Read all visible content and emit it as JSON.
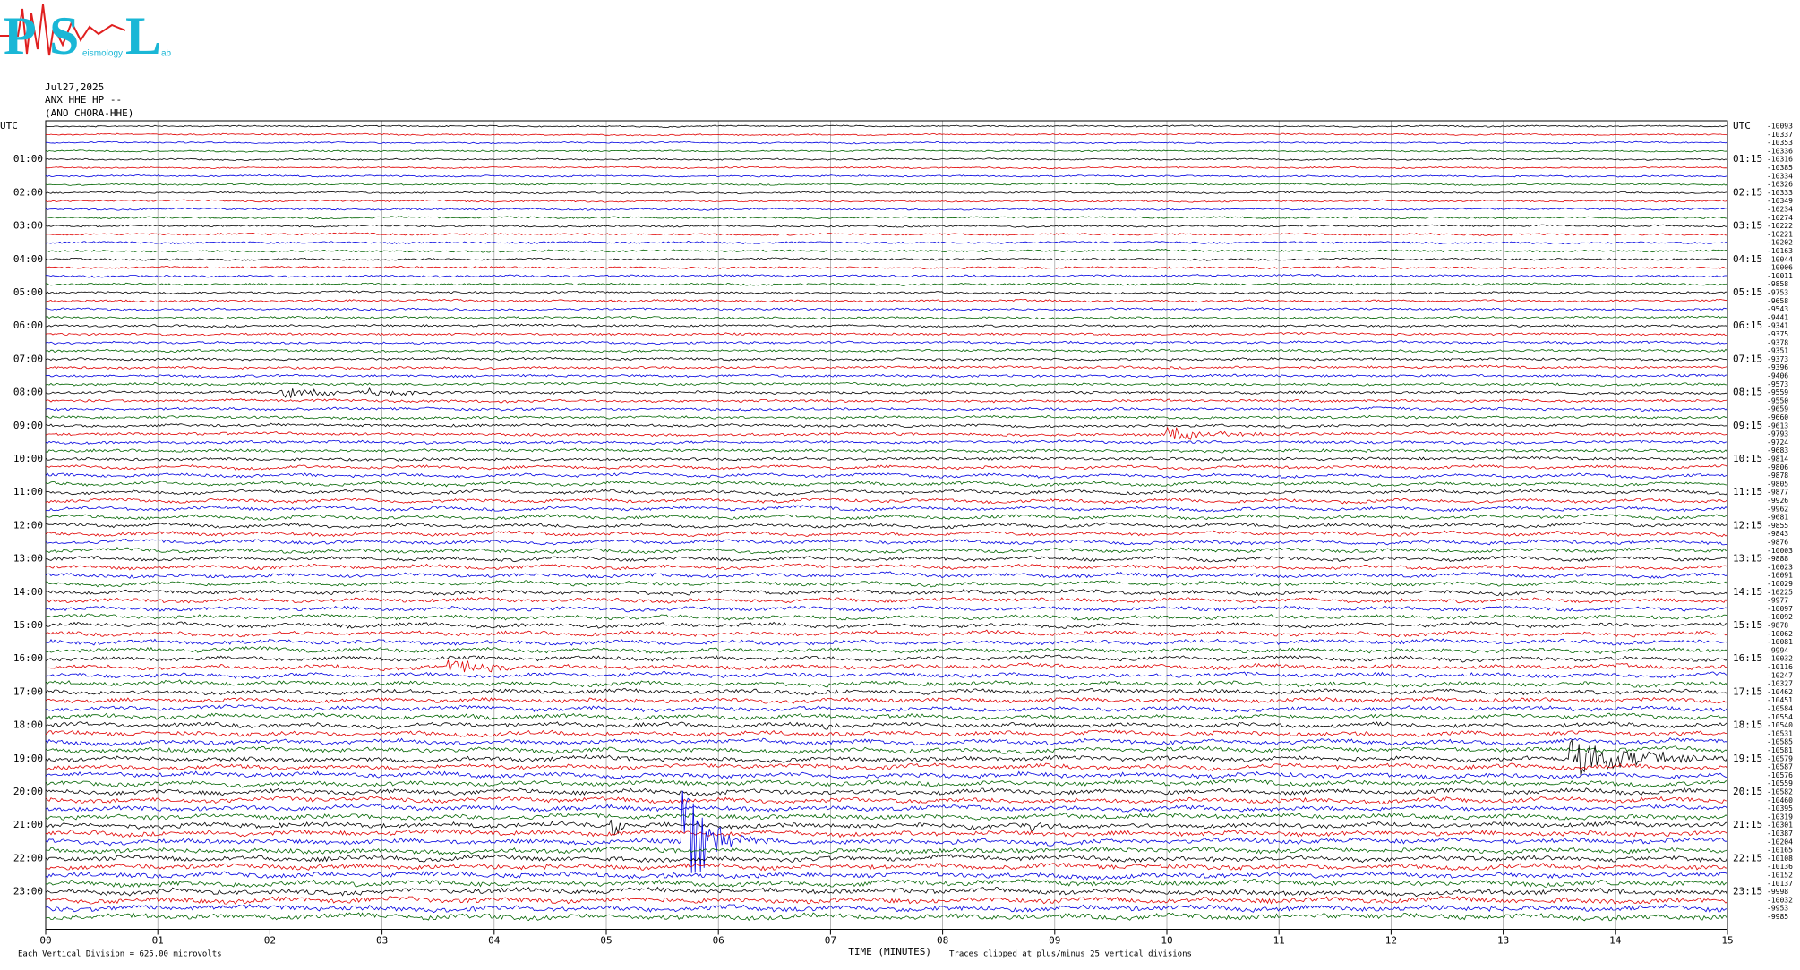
{
  "header": {
    "logo": [
      "P",
      "S",
      "L"
    ],
    "logo_words": [
      "eismology",
      "ab"
    ],
    "date": "Jul27,2025",
    "station": "ANX HHE HP --",
    "station_name": "(ANO CHORA-HHE)"
  },
  "left_labels": [
    "UTC",
    "01:00",
    "02:00",
    "03:00",
    "04:00",
    "05:00",
    "06:00",
    "07:00",
    "08:00",
    "09:00",
    "10:00",
    "11:00",
    "12:00",
    "13:00",
    "14:00",
    "15:00",
    "16:00",
    "17:00",
    "18:00",
    "19:00",
    "20:00",
    "21:00",
    "22:00",
    "23:00"
  ],
  "right_labels": [
    "UTC",
    "01:15",
    "02:15",
    "03:15",
    "04:15",
    "05:15",
    "06:15",
    "07:15",
    "08:15",
    "09:15",
    "10:15",
    "11:15",
    "12:15",
    "13:15",
    "14:15",
    "15:15",
    "16:15",
    "17:15",
    "18:15",
    "19:15",
    "20:15",
    "21:15",
    "22:15",
    "23:15"
  ],
  "trace_offsets": [
    "-10093",
    "-10337",
    "-10353",
    "-10336",
    "-10316",
    "-10385",
    "-10334",
    "-10326",
    "-10333",
    "-10349",
    "-10234",
    "-10274",
    "-10222",
    "-10221",
    "-10202",
    "-10163",
    "-10044",
    "-10006",
    "-10011",
    "-9858",
    "-9753",
    "-9658",
    "-9543",
    "-9441",
    "-9341",
    "-9375",
    "-9378",
    "-9351",
    "-9373",
    "-9396",
    "-9406",
    "-9573",
    "-9559",
    "-9550",
    "-9659",
    "-9660",
    "-9613",
    "-9793",
    "-9724",
    "-9683",
    "-9814",
    "-9806",
    "-9878",
    "-9805",
    "-9877",
    "-9926",
    "-9962",
    "-9681",
    "-9855",
    "-9843",
    "-9876",
    "-10003",
    "-9888",
    "-10023",
    "-10091",
    "-10029",
    "-10225",
    "-9977",
    "-10097",
    "-10092",
    "-9878",
    "-10062",
    "-10081",
    "-9994",
    "-10032",
    "-10116",
    "-10247",
    "-10327",
    "-10462",
    "-10451",
    "-10584",
    "-10554",
    "-10540",
    "-10531",
    "-10585",
    "-10581",
    "-10579",
    "-10587",
    "-10576",
    "-10559",
    "-10582",
    "-10460",
    "-10395",
    "-10319",
    "-10301",
    "-10387",
    "-10204",
    "-10165",
    "-10108",
    "-10136",
    "-10152",
    "-10137",
    "-9998",
    "-10032",
    "-9953",
    "-9985"
  ],
  "x_ticks": [
    "00",
    "01",
    "02",
    "03",
    "04",
    "05",
    "06",
    "07",
    "08",
    "09",
    "10",
    "11",
    "12",
    "13",
    "14",
    "15"
  ],
  "footer": {
    "scale": "Each Vertical Division =  625.00 microvolts",
    "x_title": "TIME (MINUTES)",
    "clip_note": "Traces clipped at plus/minus 25 vertical divisions"
  }
}
